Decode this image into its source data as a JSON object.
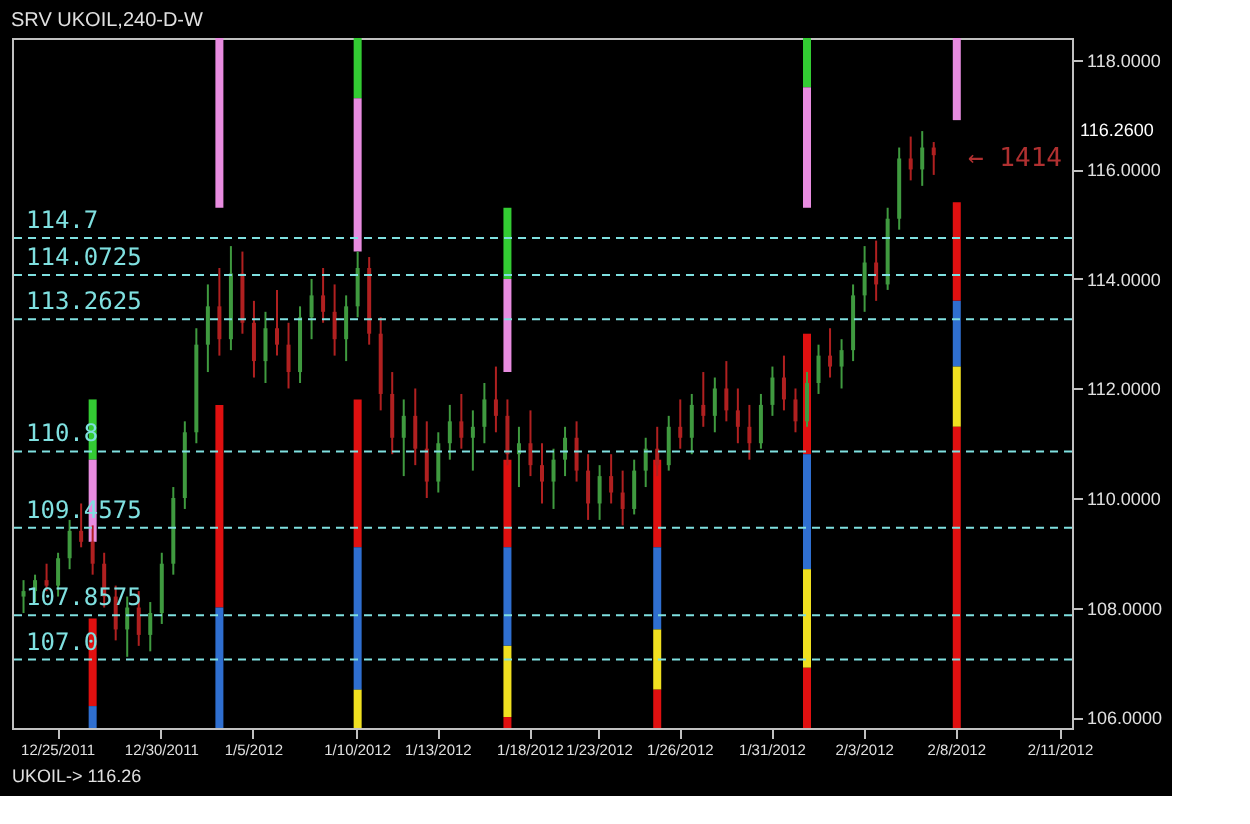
{
  "chart_data": {
    "type": "candlestick",
    "title": "SRV   UKOIL,240-D-W",
    "categories": [
      null,
      null,
      null,
      "12/25/2011",
      null,
      null,
      null,
      null,
      null,
      null,
      null,
      null,
      "12/30/2011",
      null,
      null,
      null,
      null,
      null,
      null,
      null,
      "1/5/2012",
      null,
      null,
      null,
      null,
      null,
      null,
      null,
      null,
      "1/10/2012",
      null,
      null,
      null,
      null,
      null,
      null,
      "1/13/2012",
      null,
      null,
      null,
      null,
      null,
      null,
      null,
      "1/18/2012",
      null,
      null,
      null,
      null,
      null,
      "1/23/2012",
      null,
      null,
      null,
      null,
      null,
      null,
      "1/26/2012",
      null,
      null,
      null,
      null,
      null,
      null,
      null,
      "1/31/2012",
      null,
      null,
      null,
      null,
      null,
      null,
      null,
      "2/3/2012",
      null,
      null,
      null,
      null,
      null,
      null,
      null,
      "2/8/2012",
      null,
      null,
      null,
      null,
      null,
      null,
      null,
      null,
      "2/11/2012"
    ],
    "colors": [
      "#3f9a3f",
      "#3f9a3f",
      "#b02020",
      "#3f9a3f",
      "#3f9a3f",
      "#b02020",
      "#b02020",
      "#b02020",
      "#b02020",
      "#3f9a3f",
      "#b02020",
      "#3f9a3f",
      "#3f9a3f",
      "#3f9a3f",
      "#3f9a3f",
      "#3f9a3f",
      "#3f9a3f",
      "#b02020",
      "#3f9a3f",
      "#b02020",
      "#b02020",
      "#3f9a3f",
      "#b02020",
      "#b02020",
      "#3f9a3f",
      "#3f9a3f",
      "#b02020",
      "#b02020",
      "#3f9a3f",
      "#3f9a3f",
      "#b02020",
      "#b02020",
      "#b02020",
      "#3f9a3f",
      "#b02020",
      "#b02020",
      "#3f9a3f",
      "#3f9a3f",
      "#b02020",
      "#3f9a3f",
      "#3f9a3f",
      "#b02020",
      "#b02020",
      "#3f9a3f",
      "#b02020",
      "#b02020",
      "#3f9a3f",
      "#3f9a3f",
      "#b02020",
      "#b02020",
      "#3f9a3f",
      "#b02020",
      "#b02020",
      "#3f9a3f",
      "#3f9a3f",
      "#b02020",
      "#3f9a3f",
      "#b02020",
      "#3f9a3f",
      "#b02020",
      "#3f9a3f",
      "#b02020",
      "#b02020",
      "#b02020",
      "#3f9a3f",
      "#3f9a3f",
      "#b02020",
      "#b02020",
      "#3f9a3f",
      "#3f9a3f",
      "#b02020",
      "#3f9a3f",
      "#3f9a3f",
      "#3f9a3f",
      "#b02020",
      "#3f9a3f",
      "#3f9a3f",
      "#b02020",
      "#3f9a3f",
      "#b02020",
      null,
      null,
      null,
      null,
      null,
      null,
      null,
      null,
      null,
      null,
      null
    ],
    "ohlc": [
      [
        108.2,
        108.5,
        107.9,
        108.3
      ],
      [
        108.3,
        108.6,
        108.1,
        108.5
      ],
      [
        108.5,
        108.8,
        108.3,
        108.4
      ],
      [
        108.4,
        109.0,
        108.2,
        108.9
      ],
      [
        108.9,
        109.6,
        108.7,
        109.4
      ],
      [
        109.4,
        109.9,
        109.1,
        109.2
      ],
      [
        109.2,
        109.5,
        108.6,
        108.8
      ],
      [
        108.8,
        109.0,
        108.0,
        108.2
      ],
      [
        108.2,
        108.4,
        107.4,
        107.6
      ],
      [
        107.6,
        108.2,
        107.1,
        108.0
      ],
      [
        108.0,
        108.3,
        107.3,
        107.5
      ],
      [
        107.5,
        108.1,
        107.2,
        107.9
      ],
      [
        107.9,
        109.0,
        107.7,
        108.8
      ],
      [
        108.8,
        110.2,
        108.6,
        110.0
      ],
      [
        110.0,
        111.4,
        109.8,
        111.2
      ],
      [
        111.2,
        113.1,
        111.0,
        112.8
      ],
      [
        112.8,
        113.9,
        112.3,
        113.5
      ],
      [
        113.5,
        114.2,
        112.6,
        112.9
      ],
      [
        112.9,
        114.6,
        112.7,
        114.1
      ],
      [
        114.1,
        114.5,
        113.0,
        113.2
      ],
      [
        113.2,
        113.6,
        112.2,
        112.5
      ],
      [
        112.5,
        113.4,
        112.1,
        113.1
      ],
      [
        113.1,
        113.8,
        112.6,
        112.8
      ],
      [
        112.8,
        113.2,
        112.0,
        112.3
      ],
      [
        112.3,
        113.5,
        112.1,
        113.3
      ],
      [
        113.3,
        114.0,
        112.9,
        113.7
      ],
      [
        113.7,
        114.2,
        113.2,
        113.4
      ],
      [
        113.4,
        113.9,
        112.6,
        112.9
      ],
      [
        112.9,
        113.7,
        112.5,
        113.5
      ],
      [
        113.5,
        114.5,
        113.3,
        114.2
      ],
      [
        114.2,
        114.4,
        112.8,
        113.0
      ],
      [
        113.0,
        113.3,
        111.6,
        111.9
      ],
      [
        111.9,
        112.3,
        110.8,
        111.1
      ],
      [
        111.1,
        111.8,
        110.4,
        111.5
      ],
      [
        111.5,
        112.0,
        110.6,
        110.9
      ],
      [
        110.9,
        111.4,
        110.0,
        110.3
      ],
      [
        110.3,
        111.2,
        110.1,
        111.0
      ],
      [
        111.0,
        111.7,
        110.7,
        111.4
      ],
      [
        111.4,
        111.9,
        110.9,
        111.1
      ],
      [
        111.1,
        111.6,
        110.5,
        111.3
      ],
      [
        111.3,
        112.1,
        111.0,
        111.8
      ],
      [
        111.8,
        112.4,
        111.2,
        111.5
      ],
      [
        111.5,
        111.8,
        110.6,
        110.8
      ],
      [
        110.8,
        111.3,
        110.2,
        111.0
      ],
      [
        111.0,
        111.6,
        110.4,
        110.6
      ],
      [
        110.6,
        111.0,
        109.9,
        110.3
      ],
      [
        110.3,
        110.9,
        109.8,
        110.7
      ],
      [
        110.7,
        111.3,
        110.4,
        111.1
      ],
      [
        111.1,
        111.4,
        110.3,
        110.5
      ],
      [
        110.5,
        110.8,
        109.6,
        109.9
      ],
      [
        109.9,
        110.6,
        109.6,
        110.4
      ],
      [
        110.4,
        110.8,
        109.9,
        110.1
      ],
      [
        110.1,
        110.5,
        109.5,
        109.8
      ],
      [
        109.8,
        110.7,
        109.7,
        110.5
      ],
      [
        110.5,
        111.1,
        110.2,
        110.9
      ],
      [
        110.9,
        111.3,
        110.4,
        110.6
      ],
      [
        110.6,
        111.5,
        110.5,
        111.3
      ],
      [
        111.3,
        111.8,
        110.9,
        111.1
      ],
      [
        111.1,
        111.9,
        110.8,
        111.7
      ],
      [
        111.7,
        112.3,
        111.3,
        111.5
      ],
      [
        111.5,
        112.2,
        111.2,
        112.0
      ],
      [
        112.0,
        112.5,
        111.4,
        111.6
      ],
      [
        111.6,
        112.0,
        111.0,
        111.3
      ],
      [
        111.3,
        111.7,
        110.7,
        111.0
      ],
      [
        111.0,
        111.9,
        110.9,
        111.7
      ],
      [
        111.7,
        112.4,
        111.5,
        112.2
      ],
      [
        112.2,
        112.6,
        111.6,
        111.8
      ],
      [
        111.8,
        112.0,
        111.2,
        111.4
      ],
      [
        111.4,
        112.3,
        111.3,
        112.1
      ],
      [
        112.1,
        112.8,
        111.9,
        112.6
      ],
      [
        112.6,
        113.1,
        112.2,
        112.4
      ],
      [
        112.4,
        112.9,
        112.0,
        112.7
      ],
      [
        112.7,
        113.9,
        112.5,
        113.7
      ],
      [
        113.7,
        114.6,
        113.4,
        114.3
      ],
      [
        114.3,
        114.7,
        113.6,
        113.9
      ],
      [
        113.9,
        115.3,
        113.8,
        115.1
      ],
      [
        115.1,
        116.4,
        114.9,
        116.2
      ],
      [
        116.2,
        116.6,
        115.8,
        116.0
      ],
      [
        116.0,
        116.7,
        115.7,
        116.4
      ],
      [
        116.4,
        116.5,
        115.9,
        116.26
      ],
      null,
      null,
      null,
      null,
      null,
      null,
      null,
      null,
      null,
      null,
      null
    ],
    "series": [
      {
        "type": "bar",
        "color": "#33cc33",
        "values": [
          null,
          null,
          null,
          null,
          null,
          null,
          1.1,
          null,
          null,
          null,
          null,
          null,
          null,
          null,
          null,
          null,
          null,
          null,
          null,
          null,
          null,
          null,
          null,
          null,
          null,
          null,
          null,
          null,
          null,
          1.1,
          null,
          null,
          null,
          null,
          null,
          null,
          null,
          null,
          null,
          null,
          null,
          null,
          1.3,
          null,
          null,
          null,
          null,
          null,
          null,
          null,
          null,
          null,
          null,
          null,
          null,
          null,
          null,
          null,
          null,
          null,
          null,
          null,
          null,
          null,
          null,
          null,
          null,
          null,
          0.9,
          null,
          null,
          null,
          null,
          null,
          null,
          null,
          null,
          null,
          null,
          null,
          null,
          null,
          null,
          null,
          null,
          null,
          null,
          null,
          null,
          null,
          null
        ],
        "base": [
          null,
          null,
          null,
          null,
          null,
          null,
          110.7,
          null,
          null,
          null,
          null,
          null,
          null,
          null,
          null,
          null,
          null,
          null,
          null,
          null,
          null,
          null,
          null,
          null,
          null,
          null,
          null,
          null,
          null,
          117.3,
          null,
          null,
          null,
          null,
          null,
          null,
          null,
          null,
          null,
          null,
          null,
          null,
          114.0,
          null,
          null,
          null,
          null,
          null,
          null,
          null,
          null,
          null,
          null,
          null,
          null,
          null,
          null,
          null,
          null,
          null,
          null,
          null,
          null,
          null,
          null,
          null,
          null,
          null,
          117.5,
          null,
          null,
          null,
          null,
          null,
          null,
          null,
          null,
          null,
          null,
          null,
          null,
          null,
          null,
          null,
          null,
          null,
          null,
          null,
          null,
          null,
          null
        ]
      },
      {
        "type": "bar",
        "color": "#e88ce0",
        "values": [
          null,
          null,
          null,
          null,
          null,
          null,
          1.5,
          null,
          null,
          null,
          null,
          null,
          null,
          null,
          null,
          null,
          null,
          3.1,
          null,
          null,
          null,
          null,
          null,
          null,
          null,
          null,
          null,
          null,
          null,
          2.8,
          null,
          null,
          null,
          null,
          null,
          null,
          null,
          null,
          null,
          null,
          null,
          null,
          1.7,
          null,
          null,
          null,
          null,
          null,
          null,
          null,
          null,
          null,
          null,
          null,
          null,
          null,
          null,
          null,
          null,
          null,
          null,
          null,
          null,
          null,
          null,
          null,
          null,
          null,
          2.2,
          null,
          null,
          null,
          null,
          null,
          null,
          null,
          null,
          null,
          null,
          null,
          null,
          1.5,
          null,
          null,
          null,
          null,
          null,
          null,
          null,
          null,
          null
        ],
        "base": [
          null,
          null,
          null,
          null,
          null,
          null,
          109.2,
          null,
          null,
          null,
          null,
          null,
          null,
          null,
          null,
          null,
          null,
          115.3,
          null,
          null,
          null,
          null,
          null,
          null,
          null,
          null,
          null,
          null,
          null,
          114.5,
          null,
          null,
          null,
          null,
          null,
          null,
          null,
          null,
          null,
          null,
          null,
          null,
          112.3,
          null,
          null,
          null,
          null,
          null,
          null,
          null,
          null,
          null,
          null,
          null,
          null,
          null,
          null,
          null,
          null,
          null,
          null,
          null,
          null,
          null,
          null,
          null,
          null,
          null,
          115.3,
          null,
          null,
          null,
          null,
          null,
          null,
          null,
          null,
          null,
          null,
          null,
          null,
          116.9,
          null,
          null,
          null,
          null,
          null,
          null,
          null,
          null,
          null
        ]
      },
      {
        "type": "bar",
        "color": "#e01010",
        "values": [
          null,
          null,
          null,
          null,
          null,
          null,
          1.6,
          null,
          null,
          null,
          null,
          null,
          null,
          null,
          null,
          null,
          null,
          3.7,
          null,
          null,
          null,
          null,
          null,
          null,
          null,
          null,
          null,
          null,
          null,
          2.7,
          null,
          null,
          null,
          null,
          null,
          null,
          null,
          null,
          null,
          null,
          null,
          null,
          1.6,
          null,
          null,
          null,
          null,
          null,
          null,
          null,
          null,
          null,
          null,
          null,
          null,
          1.6,
          null,
          null,
          null,
          null,
          null,
          null,
          null,
          null,
          null,
          null,
          null,
          null,
          2.2,
          null,
          null,
          null,
          null,
          null,
          null,
          null,
          null,
          null,
          null,
          null,
          null,
          1.8,
          null,
          null,
          null,
          null,
          null,
          null,
          null,
          null,
          null
        ],
        "base": [
          null,
          null,
          null,
          null,
          null,
          null,
          106.2,
          null,
          null,
          null,
          null,
          null,
          null,
          null,
          null,
          null,
          null,
          108.0,
          null,
          null,
          null,
          null,
          null,
          null,
          null,
          null,
          null,
          null,
          null,
          109.1,
          null,
          null,
          null,
          null,
          null,
          null,
          null,
          null,
          null,
          null,
          null,
          null,
          109.1,
          null,
          null,
          null,
          null,
          null,
          null,
          null,
          null,
          null,
          null,
          null,
          null,
          109.1,
          null,
          null,
          null,
          null,
          null,
          null,
          null,
          null,
          null,
          null,
          null,
          null,
          110.8,
          null,
          null,
          null,
          null,
          null,
          null,
          null,
          null,
          null,
          null,
          null,
          null,
          113.6,
          null,
          null,
          null,
          null,
          null,
          null,
          null,
          null,
          null
        ]
      },
      {
        "type": "bar",
        "color": "#2f6fd0",
        "values": [
          null,
          null,
          null,
          null,
          null,
          null,
          0.4,
          null,
          null,
          null,
          null,
          null,
          null,
          null,
          null,
          null,
          null,
          2.2,
          null,
          null,
          null,
          null,
          null,
          null,
          null,
          null,
          null,
          null,
          null,
          2.6,
          null,
          null,
          null,
          null,
          null,
          null,
          null,
          null,
          null,
          null,
          null,
          null,
          1.8,
          null,
          null,
          null,
          null,
          null,
          null,
          null,
          null,
          null,
          null,
          null,
          null,
          1.5,
          null,
          null,
          null,
          null,
          null,
          null,
          null,
          null,
          null,
          null,
          null,
          null,
          2.1,
          null,
          null,
          null,
          null,
          null,
          null,
          null,
          null,
          null,
          null,
          null,
          null,
          1.2,
          null,
          null,
          null,
          null,
          null,
          null,
          null,
          null,
          null
        ],
        "base": [
          null,
          null,
          null,
          null,
          null,
          null,
          105.8,
          null,
          null,
          null,
          null,
          null,
          null,
          null,
          null,
          null,
          null,
          105.8,
          null,
          null,
          null,
          null,
          null,
          null,
          null,
          null,
          null,
          null,
          null,
          106.5,
          null,
          null,
          null,
          null,
          null,
          null,
          null,
          null,
          null,
          null,
          null,
          null,
          107.3,
          null,
          null,
          null,
          null,
          null,
          null,
          null,
          null,
          null,
          null,
          null,
          null,
          107.6,
          null,
          null,
          null,
          null,
          null,
          null,
          null,
          null,
          null,
          null,
          null,
          null,
          108.7,
          null,
          null,
          null,
          null,
          null,
          null,
          null,
          null,
          null,
          null,
          null,
          null,
          112.4,
          null,
          null,
          null,
          null,
          null,
          null,
          null,
          null,
          null
        ]
      },
      {
        "type": "bar",
        "color": "#f0e020",
        "values": [
          null,
          null,
          null,
          null,
          null,
          null,
          null,
          null,
          null,
          null,
          null,
          null,
          null,
          null,
          null,
          null,
          null,
          null,
          null,
          null,
          null,
          null,
          null,
          null,
          null,
          null,
          null,
          null,
          null,
          0.7,
          null,
          null,
          null,
          null,
          null,
          null,
          null,
          null,
          null,
          null,
          null,
          null,
          1.3,
          null,
          null,
          null,
          null,
          null,
          null,
          null,
          null,
          null,
          null,
          null,
          null,
          1.1,
          null,
          null,
          null,
          null,
          null,
          null,
          null,
          null,
          null,
          null,
          null,
          null,
          1.8,
          null,
          null,
          null,
          null,
          null,
          null,
          null,
          null,
          null,
          null,
          null,
          null,
          1.1,
          null,
          null,
          null,
          null,
          null,
          null,
          null,
          null,
          null
        ],
        "base": [
          null,
          null,
          null,
          null,
          null,
          null,
          null,
          null,
          null,
          null,
          null,
          null,
          null,
          null,
          null,
          null,
          null,
          null,
          null,
          null,
          null,
          null,
          null,
          null,
          null,
          null,
          null,
          null,
          null,
          105.8,
          null,
          null,
          null,
          null,
          null,
          null,
          null,
          null,
          null,
          null,
          null,
          null,
          106.0,
          null,
          null,
          null,
          null,
          null,
          null,
          null,
          null,
          null,
          null,
          null,
          null,
          106.5,
          null,
          null,
          null,
          null,
          null,
          null,
          null,
          null,
          null,
          null,
          null,
          null,
          106.9,
          null,
          null,
          null,
          null,
          null,
          null,
          null,
          null,
          null,
          null,
          null,
          null,
          111.3,
          null,
          null,
          null,
          null,
          null,
          null,
          null,
          null,
          null
        ]
      },
      {
        "type": "bar",
        "color": "#e01010",
        "values": [
          null,
          null,
          null,
          null,
          null,
          null,
          null,
          null,
          null,
          null,
          null,
          null,
          null,
          null,
          null,
          null,
          null,
          null,
          null,
          null,
          null,
          null,
          null,
          null,
          null,
          null,
          null,
          null,
          null,
          null,
          null,
          null,
          null,
          null,
          null,
          null,
          null,
          null,
          null,
          null,
          null,
          null,
          0.2,
          null,
          null,
          null,
          null,
          null,
          null,
          null,
          null,
          null,
          null,
          null,
          null,
          0.7,
          null,
          null,
          null,
          null,
          null,
          null,
          null,
          null,
          null,
          null,
          null,
          null,
          1.1,
          null,
          null,
          null,
          null,
          null,
          null,
          null,
          null,
          null,
          null,
          null,
          null,
          5.5,
          null,
          null,
          null,
          null,
          null,
          null,
          null,
          null,
          null
        ],
        "base": [
          null,
          null,
          null,
          null,
          null,
          null,
          null,
          null,
          null,
          null,
          null,
          null,
          null,
          null,
          null,
          null,
          null,
          null,
          null,
          null,
          null,
          null,
          null,
          null,
          null,
          null,
          null,
          null,
          null,
          null,
          null,
          null,
          null,
          null,
          null,
          null,
          null,
          null,
          null,
          null,
          null,
          null,
          105.8,
          null,
          null,
          null,
          null,
          null,
          null,
          null,
          null,
          null,
          null,
          null,
          null,
          105.8,
          null,
          null,
          null,
          null,
          null,
          null,
          null,
          null,
          null,
          null,
          null,
          null,
          105.8,
          null,
          null,
          null,
          null,
          null,
          null,
          null,
          null,
          null,
          null,
          null,
          null,
          105.8,
          null,
          null,
          null,
          null,
          null,
          null,
          null,
          null,
          null
        ]
      }
    ],
    "ylim": [
      105.8,
      118.4
    ],
    "yticks": [
      {
        "value": 106,
        "label": "106.0000"
      },
      {
        "value": 108,
        "label": "108.0000"
      },
      {
        "value": 110,
        "label": "110.0000"
      },
      {
        "value": 112,
        "label": "112.0000"
      },
      {
        "value": 114,
        "label": "114.0000"
      },
      {
        "value": 116,
        "label": "116.0000"
      },
      {
        "value": 118,
        "label": "118.0000"
      }
    ],
    "ref_lines": [
      {
        "axis": "y",
        "value": 113.2625,
        "label": "113.2625",
        "color": "#7fe0e0",
        "line_style": "dashed"
      },
      {
        "axis": "y",
        "value": 107.8575,
        "label": "107.8575",
        "color": "#7fe0e0",
        "line_style": "dashed"
      },
      {
        "axis": "y",
        "value": 114.0725,
        "label": "114.0725",
        "color": "#7fe0e0",
        "line_style": "dashed"
      },
      {
        "axis": "y",
        "value": 109.4575,
        "label": "109.4575",
        "color": "#7fe0e0",
        "line_style": "dashed"
      },
      {
        "axis": "y",
        "value": 114.75,
        "label": "114.7",
        "color": "#7fe0e0",
        "line_style": "dashed"
      },
      {
        "axis": "y",
        "value": 110.85,
        "label": "110.8",
        "color": "#7fe0e0",
        "line_style": "dashed"
      },
      {
        "axis": "y",
        "value": 107.05,
        "label": "107.0",
        "color": "#7fe0e0",
        "line_style": "dashed"
      }
    ],
    "annotations": [
      "← 1414",
      "116.2600",
      "UKOIL-> 116.26"
    ],
    "grid": false
  }
}
